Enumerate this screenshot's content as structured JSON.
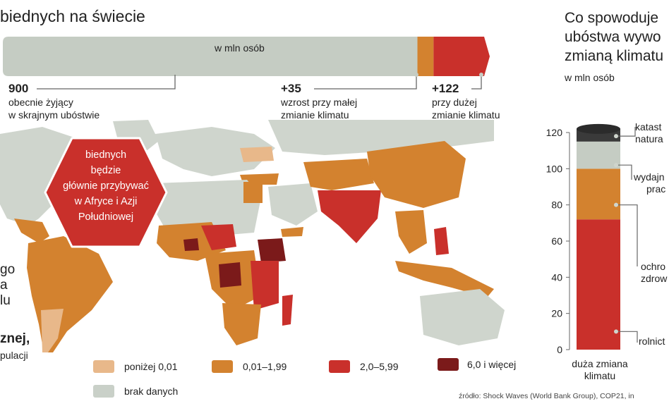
{
  "left": {
    "title": "biednych na świecie",
    "bar_label": "w mln osób",
    "stats": [
      {
        "value": "900",
        "line1": "obecnie żyjący",
        "line2": "w skrajnym ubóstwie"
      },
      {
        "value": "+35",
        "line1": "wzrost przy małej",
        "line2": "zmianie klimatu"
      },
      {
        "value": "+122",
        "line1": "przy dużej",
        "line2": "zmianie klimatu"
      }
    ],
    "hexagon": [
      "biednych",
      "będzie",
      "głównie przybywać",
      "w Afryce i Azji",
      "Południowej"
    ],
    "cut_text": [
      "go",
      "a",
      "lu",
      "znej,",
      "pulacji"
    ],
    "legend": [
      {
        "label": "poniżej 0,01",
        "color": "#e8b88a"
      },
      {
        "label": "0,01–1,99",
        "color": "#d3822f"
      },
      {
        "label": "2,0–5,99",
        "color": "#c9302b"
      },
      {
        "label": "6,0 i więcej",
        "color": "#7b1a1a"
      },
      {
        "label": "brak danych",
        "color": "#c9d0c8"
      }
    ],
    "colors": {
      "gray_bar": "#c5ccc3",
      "orange": "#d3822f",
      "red": "#c9302b",
      "land_gray": "#cfd5cd"
    }
  },
  "right": {
    "title_lines": [
      "Co spowoduje",
      "ubóstwa wywo",
      "zmianą klimatu"
    ],
    "unit": "w mln osób",
    "source": "źródło: Shock Waves (World Bank Group), COP21, in"
  },
  "chart_data": [
    {
      "type": "bar",
      "orientation": "horizontal",
      "stacked": true,
      "title": "",
      "xlabel": "w mln osób",
      "categories": [
        "obecnie żyjący w skrajnym ubóstwie",
        "wzrost przy małej zmianie klimatu",
        "przy dużej zmianie klimatu"
      ],
      "values": [
        900,
        35,
        122
      ]
    },
    {
      "type": "bar",
      "stacked": true,
      "categories": [
        "duża zmiana klimatu"
      ],
      "ylim": [
        0,
        120
      ],
      "yticks": [
        0,
        20,
        40,
        60,
        80,
        100,
        120
      ],
      "ylabel": "w mln osób",
      "series": [
        {
          "name": "rolnict",
          "values": [
            72
          ],
          "color": "#c9302b"
        },
        {
          "name": "ochro zdrow",
          "values": [
            28
          ],
          "color": "#d3822f"
        },
        {
          "name": "wydajn prac",
          "values": [
            15
          ],
          "color": "#c5ccc3"
        },
        {
          "name": "katast natura",
          "values": [
            7
          ],
          "color": "#3a3a3a"
        }
      ]
    }
  ]
}
